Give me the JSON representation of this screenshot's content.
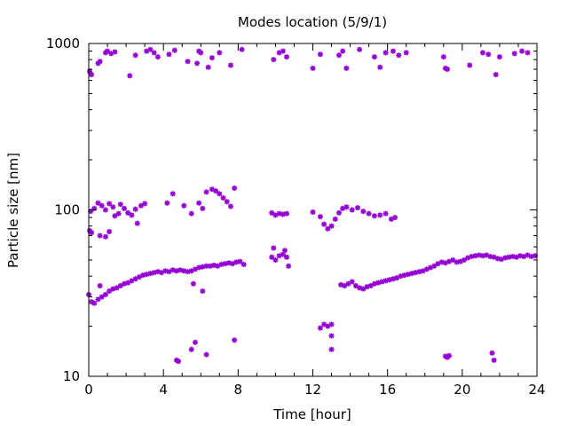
{
  "chart_data": {
    "type": "scatter",
    "title": "Modes location (5/9/1)",
    "xlabel": "Time [hour]",
    "ylabel": "Particle size [nm]",
    "xlim": [
      0,
      24
    ],
    "ylim": [
      10,
      1000
    ],
    "yscale": "log",
    "grid": false,
    "legend": "none",
    "marker_color": "#9400d3",
    "x_ticks": [
      0,
      4,
      8,
      12,
      16,
      20,
      24
    ],
    "y_ticks": [
      10,
      100,
      1000
    ],
    "points": [
      [
        0.05,
        680
      ],
      [
        0.15,
        650
      ],
      [
        0.5,
        760
      ],
      [
        0.6,
        780
      ],
      [
        0.9,
        880
      ],
      [
        1.0,
        900
      ],
      [
        1.2,
        870
      ],
      [
        1.4,
        890
      ],
      [
        2.2,
        640
      ],
      [
        2.5,
        850
      ],
      [
        3.1,
        900
      ],
      [
        3.3,
        920
      ],
      [
        3.5,
        880
      ],
      [
        3.7,
        830
      ],
      [
        4.3,
        860
      ],
      [
        4.6,
        910
      ],
      [
        5.3,
        780
      ],
      [
        5.8,
        760
      ],
      [
        5.9,
        900
      ],
      [
        6.0,
        880
      ],
      [
        6.4,
        720
      ],
      [
        6.6,
        820
      ],
      [
        7.0,
        880
      ],
      [
        7.6,
        740
      ],
      [
        8.2,
        920
      ],
      [
        9.9,
        800
      ],
      [
        10.2,
        880
      ],
      [
        10.4,
        900
      ],
      [
        10.6,
        830
      ],
      [
        12.0,
        710
      ],
      [
        12.4,
        860
      ],
      [
        13.4,
        850
      ],
      [
        13.6,
        900
      ],
      [
        13.8,
        710
      ],
      [
        14.5,
        920
      ],
      [
        15.3,
        830
      ],
      [
        15.6,
        720
      ],
      [
        15.9,
        880
      ],
      [
        16.3,
        900
      ],
      [
        16.6,
        850
      ],
      [
        17.0,
        880
      ],
      [
        19.0,
        830
      ],
      [
        19.1,
        710
      ],
      [
        19.2,
        700
      ],
      [
        20.4,
        740
      ],
      [
        21.1,
        880
      ],
      [
        21.4,
        860
      ],
      [
        21.8,
        650
      ],
      [
        22.0,
        830
      ],
      [
        22.8,
        870
      ],
      [
        23.2,
        900
      ],
      [
        23.5,
        880
      ],
      [
        0.05,
        75
      ],
      [
        0.15,
        73
      ],
      [
        0.1,
        98
      ],
      [
        0.3,
        102
      ],
      [
        0.5,
        110
      ],
      [
        0.7,
        106
      ],
      [
        0.9,
        100
      ],
      [
        1.1,
        109
      ],
      [
        1.3,
        104
      ],
      [
        0.6,
        70
      ],
      [
        0.9,
        69
      ],
      [
        1.1,
        74
      ],
      [
        1.4,
        92
      ],
      [
        1.6,
        95
      ],
      [
        1.7,
        108
      ],
      [
        1.9,
        102
      ],
      [
        2.1,
        96
      ],
      [
        2.3,
        93
      ],
      [
        2.5,
        101
      ],
      [
        2.6,
        83
      ],
      [
        2.8,
        106
      ],
      [
        3.0,
        109
      ],
      [
        4.2,
        110
      ],
      [
        4.5,
        125
      ],
      [
        5.1,
        106
      ],
      [
        5.5,
        95
      ],
      [
        5.9,
        110
      ],
      [
        6.1,
        102
      ],
      [
        6.3,
        128
      ],
      [
        6.6,
        133
      ],
      [
        6.8,
        130
      ],
      [
        7.0,
        125
      ],
      [
        7.2,
        118
      ],
      [
        7.4,
        112
      ],
      [
        7.6,
        105
      ],
      [
        7.8,
        135
      ],
      [
        9.8,
        96
      ],
      [
        10.0,
        93
      ],
      [
        10.2,
        95
      ],
      [
        10.4,
        94
      ],
      [
        10.6,
        95
      ],
      [
        12.0,
        97
      ],
      [
        12.4,
        91
      ],
      [
        12.6,
        82
      ],
      [
        12.8,
        77
      ],
      [
        13.0,
        80
      ],
      [
        13.2,
        88
      ],
      [
        13.4,
        96
      ],
      [
        13.6,
        102
      ],
      [
        13.8,
        104
      ],
      [
        14.1,
        100
      ],
      [
        14.4,
        103
      ],
      [
        14.7,
        98
      ],
      [
        15.0,
        95
      ],
      [
        15.3,
        92
      ],
      [
        15.6,
        93
      ],
      [
        15.9,
        95
      ],
      [
        16.2,
        88
      ],
      [
        16.4,
        90
      ],
      [
        0.0,
        31
      ],
      [
        0.15,
        28
      ],
      [
        0.3,
        27.5
      ],
      [
        0.5,
        29
      ],
      [
        0.7,
        30
      ],
      [
        0.9,
        31
      ],
      [
        1.1,
        32.5
      ],
      [
        1.3,
        33.5
      ],
      [
        1.5,
        34
      ],
      [
        1.7,
        35
      ],
      [
        1.9,
        36
      ],
      [
        2.1,
        36.5
      ],
      [
        2.3,
        37.5
      ],
      [
        2.5,
        38.5
      ],
      [
        2.7,
        39.5
      ],
      [
        2.9,
        40.5
      ],
      [
        3.1,
        41
      ],
      [
        3.3,
        41.5
      ],
      [
        3.5,
        42
      ],
      [
        3.7,
        42.5
      ],
      [
        3.9,
        42
      ],
      [
        4.1,
        43
      ],
      [
        4.3,
        42.5
      ],
      [
        4.5,
        43.5
      ],
      [
        4.7,
        43
      ],
      [
        4.9,
        43.5
      ],
      [
        5.1,
        43
      ],
      [
        5.3,
        42.5
      ],
      [
        5.5,
        43
      ],
      [
        5.7,
        44
      ],
      [
        5.9,
        45
      ],
      [
        6.1,
        45.5
      ],
      [
        6.3,
        46
      ],
      [
        6.5,
        46
      ],
      [
        6.7,
        46.5
      ],
      [
        6.9,
        46
      ],
      [
        7.1,
        47
      ],
      [
        7.3,
        47.5
      ],
      [
        7.5,
        48
      ],
      [
        7.7,
        47.5
      ],
      [
        7.9,
        48.5
      ],
      [
        8.1,
        49
      ],
      [
        8.3,
        47
      ],
      [
        0.6,
        35
      ],
      [
        5.6,
        36
      ],
      [
        6.1,
        32.5
      ],
      [
        9.8,
        52
      ],
      [
        10.0,
        50
      ],
      [
        10.2,
        53
      ],
      [
        10.4,
        54
      ],
      [
        10.5,
        57
      ],
      [
        10.6,
        52
      ],
      [
        10.7,
        46
      ],
      [
        9.9,
        59
      ],
      [
        13.5,
        35.5
      ],
      [
        13.7,
        35
      ],
      [
        13.9,
        36
      ],
      [
        14.1,
        37
      ],
      [
        14.3,
        35
      ],
      [
        14.5,
        34
      ],
      [
        14.7,
        33.5
      ],
      [
        14.9,
        34.5
      ],
      [
        15.1,
        35
      ],
      [
        15.3,
        36
      ],
      [
        15.5,
        36.5
      ],
      [
        15.7,
        37
      ],
      [
        15.9,
        37.5
      ],
      [
        16.1,
        38
      ],
      [
        16.3,
        38.5
      ],
      [
        16.5,
        39
      ],
      [
        16.7,
        40
      ],
      [
        16.9,
        40.5
      ],
      [
        17.1,
        41
      ],
      [
        17.3,
        41.5
      ],
      [
        17.5,
        42
      ],
      [
        17.7,
        42.5
      ],
      [
        17.9,
        43
      ],
      [
        18.1,
        44
      ],
      [
        18.3,
        45
      ],
      [
        18.5,
        46
      ],
      [
        18.7,
        47.5
      ],
      [
        18.9,
        48.5
      ],
      [
        19.1,
        48
      ],
      [
        19.3,
        49
      ],
      [
        19.5,
        50
      ],
      [
        19.7,
        48.5
      ],
      [
        19.9,
        49
      ],
      [
        20.1,
        50
      ],
      [
        20.3,
        51.5
      ],
      [
        20.5,
        52.5
      ],
      [
        20.7,
        53
      ],
      [
        20.9,
        53.5
      ],
      [
        21.1,
        53
      ],
      [
        21.3,
        53.5
      ],
      [
        21.5,
        52.5
      ],
      [
        21.7,
        52
      ],
      [
        21.9,
        51
      ],
      [
        22.1,
        50.5
      ],
      [
        22.3,
        51.5
      ],
      [
        22.5,
        52
      ],
      [
        22.7,
        52.5
      ],
      [
        22.9,
        52
      ],
      [
        23.1,
        53
      ],
      [
        23.3,
        52.5
      ],
      [
        23.5,
        53.5
      ],
      [
        23.7,
        52.5
      ],
      [
        23.9,
        53
      ],
      [
        4.7,
        12.5
      ],
      [
        4.8,
        12.3
      ],
      [
        5.5,
        14.5
      ],
      [
        5.7,
        16
      ],
      [
        6.3,
        13.5
      ],
      [
        7.8,
        16.5
      ],
      [
        12.4,
        19.5
      ],
      [
        12.6,
        20.5
      ],
      [
        12.8,
        20
      ],
      [
        13.0,
        20.5
      ],
      [
        13.0,
        17.5
      ],
      [
        13.0,
        14.5
      ],
      [
        19.1,
        13.2
      ],
      [
        19.2,
        13
      ],
      [
        19.3,
        13.3
      ],
      [
        21.6,
        13.8
      ],
      [
        21.7,
        12.5
      ]
    ]
  }
}
